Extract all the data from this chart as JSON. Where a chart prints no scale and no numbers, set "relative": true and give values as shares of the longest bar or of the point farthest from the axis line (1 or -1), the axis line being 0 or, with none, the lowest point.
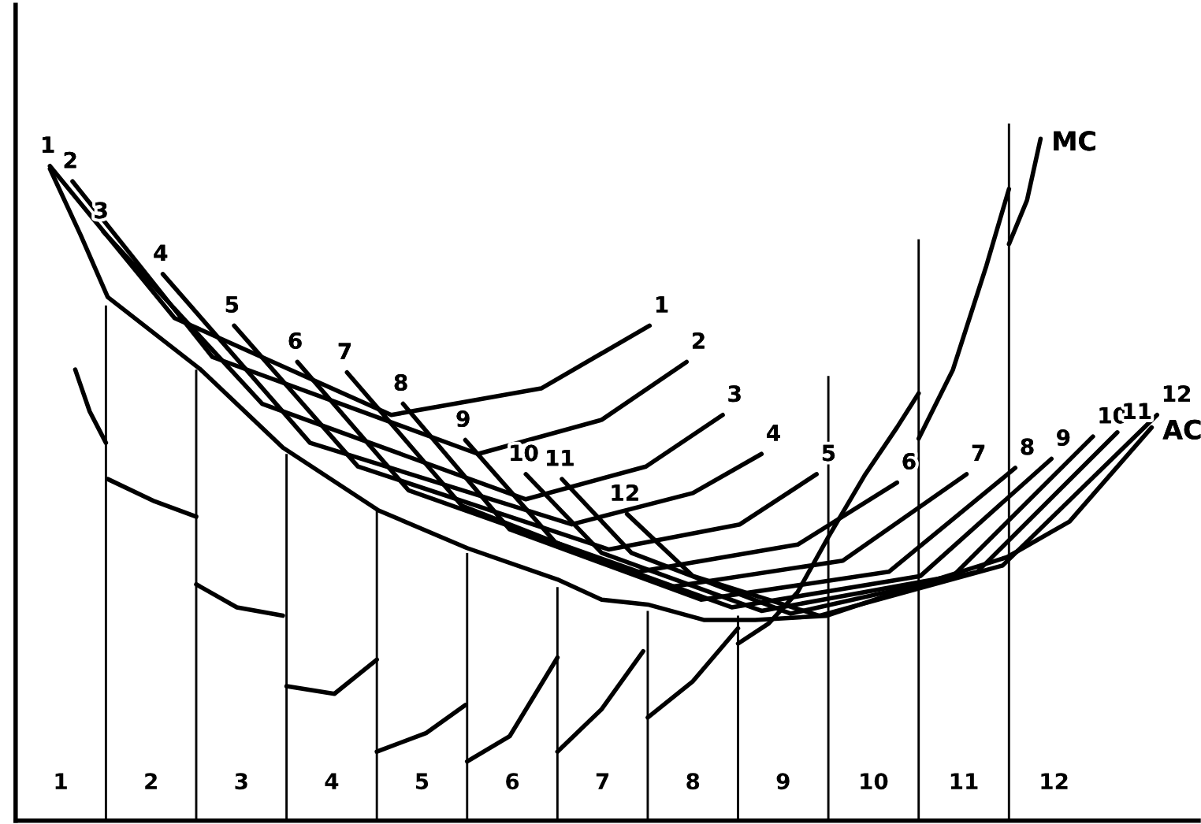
{
  "chart_data": {
    "type": "line",
    "relative": true,
    "xlim": [
      0.5,
      13.6
    ],
    "xticks": [
      1,
      2,
      3,
      4,
      5,
      6,
      7,
      8,
      9,
      10,
      11,
      12
    ],
    "series": [
      {
        "type": "bar",
        "color": "#000000",
        "x": [
          1.5,
          2.5,
          3.5,
          4.5,
          5.5,
          6.5,
          7.5,
          8.5,
          9.5,
          10.5,
          11.5
        ],
        "values": [
          0.739,
          0.647,
          0.526,
          0.445,
          0.384,
          0.335,
          0.301,
          0.294,
          0.638,
          0.834,
          1.0
        ]
      },
      {
        "color": "#000000",
        "x": [
          1.16,
          1.32,
          1.5
        ],
        "values": [
          0.647,
          0.587,
          0.542
        ]
      },
      {
        "color": "#000000",
        "x": [
          1.52,
          2.04,
          2.5
        ],
        "values": [
          0.49,
          0.458,
          0.436
        ]
      },
      {
        "color": "#000000",
        "x": [
          2.5,
          2.95,
          3.46
        ],
        "values": [
          0.339,
          0.306,
          0.294
        ]
      },
      {
        "color": "#000000",
        "x": [
          3.5,
          4.03,
          4.5
        ],
        "values": [
          0.193,
          0.182,
          0.231
        ]
      },
      {
        "color": "#000000",
        "x": [
          4.5,
          5.05,
          5.48
        ],
        "values": [
          0.099,
          0.126,
          0.166
        ]
      },
      {
        "color": "#000000",
        "x": [
          5.5,
          5.97,
          6.5
        ],
        "values": [
          0.085,
          0.121,
          0.234
        ]
      },
      {
        "color": "#000000",
        "x": [
          6.5,
          6.99,
          7.45
        ],
        "values": [
          0.099,
          0.16,
          0.243
        ]
      },
      {
        "color": "#000000",
        "x": [
          7.5,
          8.0,
          8.5
        ],
        "values": [
          0.148,
          0.2,
          0.276
        ]
      },
      {
        "color": "#000000",
        "x": [
          8.5,
          8.84,
          9.16,
          9.5,
          9.91,
          10.26,
          10.5
        ],
        "values": [
          0.254,
          0.283,
          0.328,
          0.407,
          0.497,
          0.564,
          0.613
        ]
      },
      {
        "color": "#000000",
        "x": [
          10.5,
          10.88,
          11.25,
          11.5
        ],
        "values": [
          0.548,
          0.647,
          0.796,
          0.906
        ]
      },
      {
        "color": "#000000",
        "x": [
          11.5,
          11.7,
          11.85
        ],
        "values": [
          0.827,
          0.89,
          0.978
        ]
      },
      {
        "color": "#000000",
        "x": [
          0.88,
          1.22,
          1.52,
          2.55,
          3.46,
          4.52,
          5.5,
          6.5,
          6.99,
          7.5,
          8.12,
          8.69,
          9.48,
          10.52,
          11.48,
          12.17,
          13.08
        ],
        "values": [
          0.935,
          0.84,
          0.751,
          0.647,
          0.535,
          0.445,
          0.391,
          0.346,
          0.317,
          0.31,
          0.288,
          0.288,
          0.294,
          0.339,
          0.378,
          0.429,
          0.564
        ]
      },
      {
        "name": "1",
        "color": "#000000",
        "x": [
          0.88,
          2.26,
          4.66,
          6.32,
          7.52
        ],
        "values": [
          0.939,
          0.721,
          0.582,
          0.62,
          0.71
        ]
      },
      {
        "name": "2",
        "color": "#000000",
        "x": [
          1.13,
          2.68,
          5.62,
          6.99,
          7.93
        ],
        "values": [
          0.917,
          0.665,
          0.526,
          0.575,
          0.658
        ]
      },
      {
        "name": "3",
        "color": "#000000",
        "x": [
          1.47,
          3.23,
          6.15,
          7.48,
          8.33
        ],
        "values": [
          0.845,
          0.598,
          0.461,
          0.508,
          0.582
        ]
      },
      {
        "name": "4",
        "color": "#000000",
        "x": [
          2.13,
          3.76,
          6.66,
          8.0,
          8.76
        ],
        "values": [
          0.784,
          0.542,
          0.425,
          0.47,
          0.526
        ]
      },
      {
        "name": "5",
        "color": "#000000",
        "x": [
          2.92,
          4.29,
          7.07,
          8.52,
          9.37
        ],
        "values": [
          0.71,
          0.508,
          0.389,
          0.425,
          0.497
        ]
      },
      {
        "name": "6",
        "color": "#000000",
        "x": [
          3.62,
          4.85,
          7.4,
          9.16,
          10.26
        ],
        "values": [
          0.658,
          0.474,
          0.357,
          0.396,
          0.485
        ]
      },
      {
        "name": "7",
        "color": "#000000",
        "x": [
          4.17,
          5.44,
          7.74,
          9.66,
          11.03
        ],
        "values": [
          0.643,
          0.452,
          0.335,
          0.373,
          0.497
        ]
      },
      {
        "name": "8",
        "color": "#000000",
        "x": [
          4.79,
          5.97,
          8.09,
          10.17,
          11.57
        ],
        "values": [
          0.598,
          0.418,
          0.317,
          0.357,
          0.506
        ]
      },
      {
        "name": "9",
        "color": "#000000",
        "x": [
          5.48,
          6.5,
          8.43,
          10.52,
          11.97
        ],
        "values": [
          0.546,
          0.396,
          0.306,
          0.351,
          0.519
        ]
      },
      {
        "name": "10",
        "color": "#000000",
        "x": [
          6.15,
          6.99,
          8.76,
          10.88,
          12.43
        ],
        "values": [
          0.497,
          0.384,
          0.301,
          0.351,
          0.551
        ]
      },
      {
        "name": "11",
        "color": "#000000",
        "x": [
          6.55,
          7.32,
          9.08,
          11.15,
          12.7
        ],
        "values": [
          0.49,
          0.384,
          0.297,
          0.357,
          0.557
        ]
      },
      {
        "name": "12",
        "color": "#000000",
        "x": [
          7.27,
          8.0,
          9.4,
          11.43,
          13.14
        ],
        "values": [
          0.44,
          0.351,
          0.294,
          0.366,
          0.582
        ]
      }
    ],
    "annotations": [
      {
        "text": "MC",
        "x": 11.85,
        "y": 0.978
      },
      {
        "text": "AC",
        "x": 13.08,
        "y": 0.564
      }
    ]
  }
}
